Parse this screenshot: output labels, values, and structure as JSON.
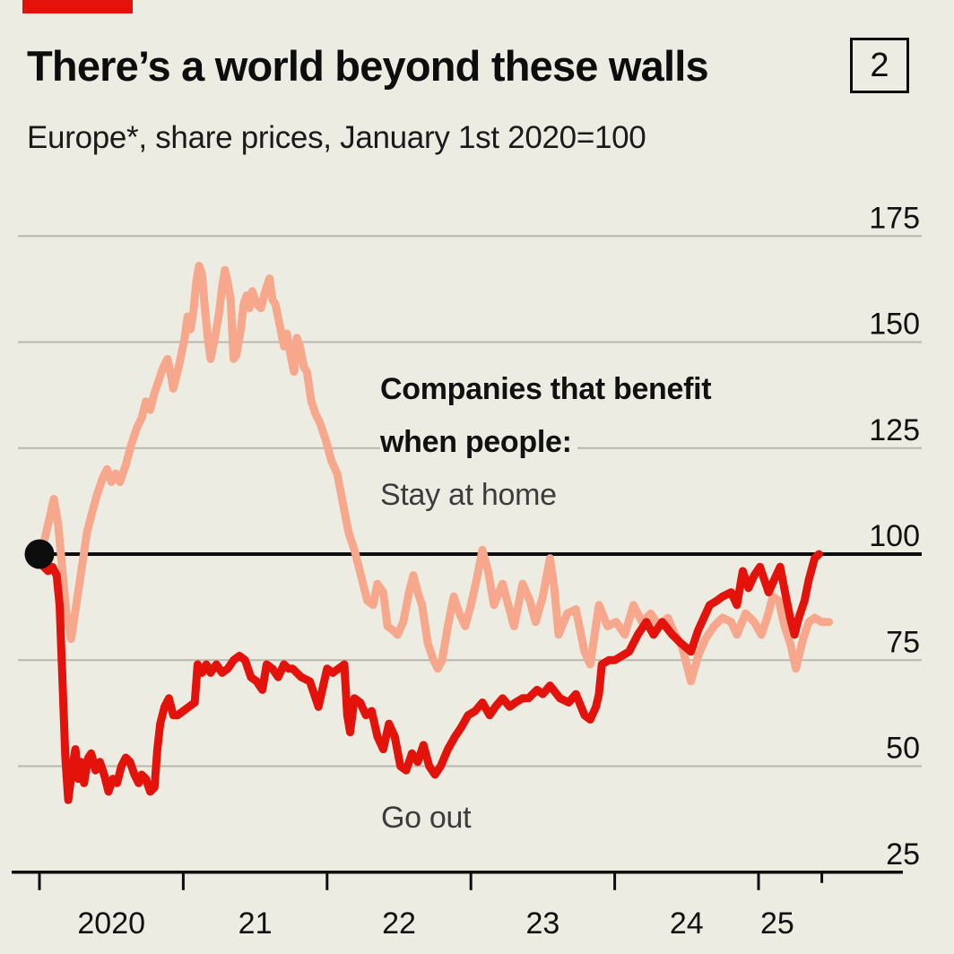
{
  "page": {
    "background": "#EDECE2"
  },
  "header": {
    "tag_color": "#E3120B",
    "title": "There’s a world beyond these walls",
    "index_badge": "2",
    "subtitle": "Europe*, share prices, January 1st 2020=100"
  },
  "chart_data": {
    "type": "line",
    "title": "There’s a world beyond these walls",
    "subtitle": "Europe*, share prices, January 1st 2020=100",
    "colors": {
      "background": "#EDECE2",
      "grid": "#B8B7AE",
      "axis": "#0D0D0D",
      "stay_at_home": "#F7A78C",
      "go_out": "#E3120B"
    },
    "annotations": {
      "bold_line_1": "Companies that benefit",
      "bold_line_2": "when people:",
      "stay_at_home_label": "Stay at home",
      "go_out_label": "Go out"
    },
    "x_axis": {
      "grid": false,
      "year_ticks": [
        2020,
        2021,
        2022,
        2023,
        2024,
        2025
      ],
      "end_marker": 2025.44,
      "labels": [
        {
          "text": "2020",
          "at": 2020.5
        },
        {
          "text": "21",
          "at": 2021.5
        },
        {
          "text": "22",
          "at": 2022.5
        },
        {
          "text": "23",
          "at": 2023.5
        },
        {
          "text": "24",
          "at": 2024.5
        },
        {
          "text": "25",
          "at": 2025.13
        }
      ]
    },
    "y_axis": {
      "side": "right",
      "grid": true,
      "ticks": [
        25,
        50,
        75,
        100,
        125,
        150,
        175
      ],
      "baseline_value": 100,
      "axis_value": 25,
      "range": [
        25,
        183
      ]
    },
    "start_marker": {
      "x": 2020.0,
      "y": 100
    },
    "series": [
      {
        "name": "Stay at home",
        "color": "#F7A78C",
        "points": [
          [
            2020.0,
            100
          ],
          [
            2020.04,
            104
          ],
          [
            2020.08,
            110
          ],
          [
            2020.1,
            113
          ],
          [
            2020.13,
            107
          ],
          [
            2020.16,
            96
          ],
          [
            2020.19,
            85
          ],
          [
            2020.22,
            80
          ],
          [
            2020.26,
            89
          ],
          [
            2020.3,
            98
          ],
          [
            2020.33,
            105
          ],
          [
            2020.36,
            109
          ],
          [
            2020.4,
            114
          ],
          [
            2020.44,
            118
          ],
          [
            2020.47,
            120
          ],
          [
            2020.5,
            117
          ],
          [
            2020.53,
            119
          ],
          [
            2020.56,
            117
          ],
          [
            2020.6,
            121
          ],
          [
            2020.64,
            126
          ],
          [
            2020.68,
            130
          ],
          [
            2020.71,
            132
          ],
          [
            2020.74,
            136
          ],
          [
            2020.77,
            134
          ],
          [
            2020.8,
            138
          ],
          [
            2020.83,
            141
          ],
          [
            2020.86,
            144
          ],
          [
            2020.89,
            146
          ],
          [
            2020.91,
            143
          ],
          [
            2020.93,
            139
          ],
          [
            2020.96,
            143
          ],
          [
            2020.98,
            146
          ],
          [
            2021.01,
            151
          ],
          [
            2021.03,
            156
          ],
          [
            2021.05,
            153
          ],
          [
            2021.07,
            157
          ],
          [
            2021.09,
            164
          ],
          [
            2021.11,
            168
          ],
          [
            2021.13,
            166
          ],
          [
            2021.15,
            158
          ],
          [
            2021.17,
            151
          ],
          [
            2021.19,
            146
          ],
          [
            2021.22,
            151
          ],
          [
            2021.25,
            157
          ],
          [
            2021.27,
            163
          ],
          [
            2021.29,
            167
          ],
          [
            2021.31,
            164
          ],
          [
            2021.33,
            160
          ],
          [
            2021.35,
            146
          ],
          [
            2021.37,
            147
          ],
          [
            2021.4,
            153
          ],
          [
            2021.42,
            159
          ],
          [
            2021.44,
            161
          ],
          [
            2021.46,
            158
          ],
          [
            2021.48,
            162
          ],
          [
            2021.51,
            159
          ],
          [
            2021.54,
            158
          ],
          [
            2021.57,
            162
          ],
          [
            2021.6,
            165
          ],
          [
            2021.62,
            160
          ],
          [
            2021.64,
            159
          ],
          [
            2021.67,
            154
          ],
          [
            2021.7,
            149
          ],
          [
            2021.72,
            152
          ],
          [
            2021.74,
            148
          ],
          [
            2021.77,
            143
          ],
          [
            2021.79,
            151
          ],
          [
            2021.81,
            149
          ],
          [
            2021.84,
            144
          ],
          [
            2021.86,
            143
          ],
          [
            2021.89,
            136
          ],
          [
            2021.92,
            133
          ],
          [
            2021.95,
            131
          ],
          [
            2021.99,
            127
          ],
          [
            2022.03,
            122
          ],
          [
            2022.07,
            119
          ],
          [
            2022.11,
            112
          ],
          [
            2022.15,
            105
          ],
          [
            2022.19,
            101
          ],
          [
            2022.22,
            97
          ],
          [
            2022.25,
            93
          ],
          [
            2022.28,
            89
          ],
          [
            2022.32,
            88
          ],
          [
            2022.35,
            93
          ],
          [
            2022.39,
            91
          ],
          [
            2022.42,
            83
          ],
          [
            2022.46,
            82
          ],
          [
            2022.49,
            81
          ],
          [
            2022.53,
            84
          ],
          [
            2022.57,
            91
          ],
          [
            2022.6,
            95
          ],
          [
            2022.63,
            91
          ],
          [
            2022.66,
            88
          ],
          [
            2022.7,
            79
          ],
          [
            2022.74,
            75
          ],
          [
            2022.77,
            73
          ],
          [
            2022.8,
            75
          ],
          [
            2022.84,
            83
          ],
          [
            2022.88,
            90
          ],
          [
            2022.92,
            86
          ],
          [
            2022.96,
            83
          ],
          [
            2023.0,
            88
          ],
          [
            2023.04,
            94
          ],
          [
            2023.08,
            101
          ],
          [
            2023.12,
            96
          ],
          [
            2023.16,
            88
          ],
          [
            2023.22,
            93
          ],
          [
            2023.26,
            88
          ],
          [
            2023.3,
            83
          ],
          [
            2023.36,
            93
          ],
          [
            2023.41,
            89
          ],
          [
            2023.45,
            84
          ],
          [
            2023.5,
            90
          ],
          [
            2023.55,
            99
          ],
          [
            2023.58,
            92
          ],
          [
            2023.61,
            81
          ],
          [
            2023.67,
            86
          ],
          [
            2023.73,
            87
          ],
          [
            2023.79,
            77
          ],
          [
            2023.83,
            74
          ],
          [
            2023.89,
            88
          ],
          [
            2023.95,
            83
          ],
          [
            2024.01,
            84
          ],
          [
            2024.07,
            81
          ],
          [
            2024.13,
            88
          ],
          [
            2024.19,
            84
          ],
          [
            2024.25,
            86
          ],
          [
            2024.31,
            83
          ],
          [
            2024.37,
            85
          ],
          [
            2024.42,
            81
          ],
          [
            2024.47,
            78
          ],
          [
            2024.53,
            70
          ],
          [
            2024.58,
            76
          ],
          [
            2024.63,
            80
          ],
          [
            2024.69,
            83
          ],
          [
            2024.75,
            85
          ],
          [
            2024.81,
            84
          ],
          [
            2024.85,
            81
          ],
          [
            2024.91,
            86
          ],
          [
            2024.97,
            84
          ],
          [
            2025.02,
            81
          ],
          [
            2025.06,
            85
          ],
          [
            2025.1,
            90
          ],
          [
            2025.14,
            89
          ],
          [
            2025.18,
            83
          ],
          [
            2025.22,
            79
          ],
          [
            2025.26,
            73
          ],
          [
            2025.31,
            80
          ],
          [
            2025.35,
            84
          ],
          [
            2025.39,
            85
          ],
          [
            2025.44,
            84
          ],
          [
            2025.49,
            84
          ]
        ]
      },
      {
        "name": "Go out",
        "color": "#E3120B",
        "points": [
          [
            2020.0,
            100
          ],
          [
            2020.03,
            97
          ],
          [
            2020.06,
            96
          ],
          [
            2020.09,
            97
          ],
          [
            2020.12,
            95
          ],
          [
            2020.14,
            88
          ],
          [
            2020.16,
            70
          ],
          [
            2020.18,
            52
          ],
          [
            2020.2,
            42
          ],
          [
            2020.23,
            50
          ],
          [
            2020.25,
            54
          ],
          [
            2020.27,
            47
          ],
          [
            2020.29,
            51
          ],
          [
            2020.31,
            46
          ],
          [
            2020.34,
            52
          ],
          [
            2020.36,
            53
          ],
          [
            2020.39,
            49
          ],
          [
            2020.42,
            51
          ],
          [
            2020.45,
            48
          ],
          [
            2020.48,
            44
          ],
          [
            2020.51,
            47
          ],
          [
            2020.54,
            46
          ],
          [
            2020.57,
            50
          ],
          [
            2020.6,
            52
          ],
          [
            2020.63,
            51
          ],
          [
            2020.66,
            48
          ],
          [
            2020.69,
            46
          ],
          [
            2020.71,
            48
          ],
          [
            2020.74,
            47
          ],
          [
            2020.77,
            44
          ],
          [
            2020.8,
            45
          ],
          [
            2020.82,
            54
          ],
          [
            2020.84,
            60
          ],
          [
            2020.87,
            64
          ],
          [
            2020.9,
            66
          ],
          [
            2020.93,
            62
          ],
          [
            2020.96,
            62
          ],
          [
            2021.0,
            63
          ],
          [
            2021.04,
            64
          ],
          [
            2021.08,
            65
          ],
          [
            2021.1,
            74
          ],
          [
            2021.13,
            72
          ],
          [
            2021.16,
            74
          ],
          [
            2021.19,
            72
          ],
          [
            2021.23,
            74
          ],
          [
            2021.27,
            72
          ],
          [
            2021.31,
            73
          ],
          [
            2021.35,
            75
          ],
          [
            2021.39,
            76
          ],
          [
            2021.43,
            75
          ],
          [
            2021.47,
            71
          ],
          [
            2021.51,
            70
          ],
          [
            2021.55,
            68
          ],
          [
            2021.58,
            74
          ],
          [
            2021.62,
            73
          ],
          [
            2021.66,
            71
          ],
          [
            2021.7,
            74
          ],
          [
            2021.73,
            73
          ],
          [
            2021.76,
            73
          ],
          [
            2021.82,
            71
          ],
          [
            2021.88,
            70
          ],
          [
            2021.94,
            64
          ],
          [
            2022.0,
            73
          ],
          [
            2022.04,
            72
          ],
          [
            2022.08,
            73
          ],
          [
            2022.12,
            74
          ],
          [
            2022.14,
            62
          ],
          [
            2022.16,
            58
          ],
          [
            2022.19,
            66
          ],
          [
            2022.23,
            65
          ],
          [
            2022.27,
            62
          ],
          [
            2022.31,
            63
          ],
          [
            2022.35,
            57
          ],
          [
            2022.39,
            54
          ],
          [
            2022.43,
            60
          ],
          [
            2022.47,
            57
          ],
          [
            2022.51,
            50
          ],
          [
            2022.55,
            49
          ],
          [
            2022.59,
            53
          ],
          [
            2022.63,
            51
          ],
          [
            2022.67,
            55
          ],
          [
            2022.71,
            50
          ],
          [
            2022.75,
            48
          ],
          [
            2022.79,
            50
          ],
          [
            2022.84,
            54
          ],
          [
            2022.89,
            57
          ],
          [
            2022.93,
            59
          ],
          [
            2022.98,
            62
          ],
          [
            2023.03,
            63
          ],
          [
            2023.08,
            65
          ],
          [
            2023.13,
            62
          ],
          [
            2023.17,
            64
          ],
          [
            2023.22,
            66
          ],
          [
            2023.27,
            64
          ],
          [
            2023.31,
            65
          ],
          [
            2023.36,
            66
          ],
          [
            2023.4,
            66
          ],
          [
            2023.46,
            68
          ],
          [
            2023.5,
            67
          ],
          [
            2023.55,
            69
          ],
          [
            2023.62,
            66
          ],
          [
            2023.68,
            65
          ],
          [
            2023.73,
            67
          ],
          [
            2023.79,
            62
          ],
          [
            2023.83,
            61
          ],
          [
            2023.87,
            64
          ],
          [
            2023.89,
            67
          ],
          [
            2023.91,
            74
          ],
          [
            2023.96,
            75
          ],
          [
            2024.0,
            75
          ],
          [
            2024.05,
            76
          ],
          [
            2024.1,
            77
          ],
          [
            2024.16,
            81
          ],
          [
            2024.22,
            84
          ],
          [
            2024.27,
            81
          ],
          [
            2024.33,
            84
          ],
          [
            2024.4,
            81
          ],
          [
            2024.46,
            79
          ],
          [
            2024.53,
            77
          ],
          [
            2024.58,
            82
          ],
          [
            2024.66,
            88
          ],
          [
            2024.71,
            89
          ],
          [
            2024.75,
            90
          ],
          [
            2024.81,
            91
          ],
          [
            2024.85,
            88
          ],
          [
            2024.89,
            96
          ],
          [
            2024.93,
            92
          ],
          [
            2024.97,
            95
          ],
          [
            2025.01,
            97
          ],
          [
            2025.05,
            93
          ],
          [
            2025.07,
            91
          ],
          [
            2025.11,
            94
          ],
          [
            2025.15,
            97
          ],
          [
            2025.19,
            90
          ],
          [
            2025.22,
            85
          ],
          [
            2025.25,
            81
          ],
          [
            2025.28,
            85
          ],
          [
            2025.32,
            89
          ],
          [
            2025.35,
            94
          ],
          [
            2025.39,
            99
          ],
          [
            2025.42,
            100
          ]
        ]
      }
    ]
  }
}
